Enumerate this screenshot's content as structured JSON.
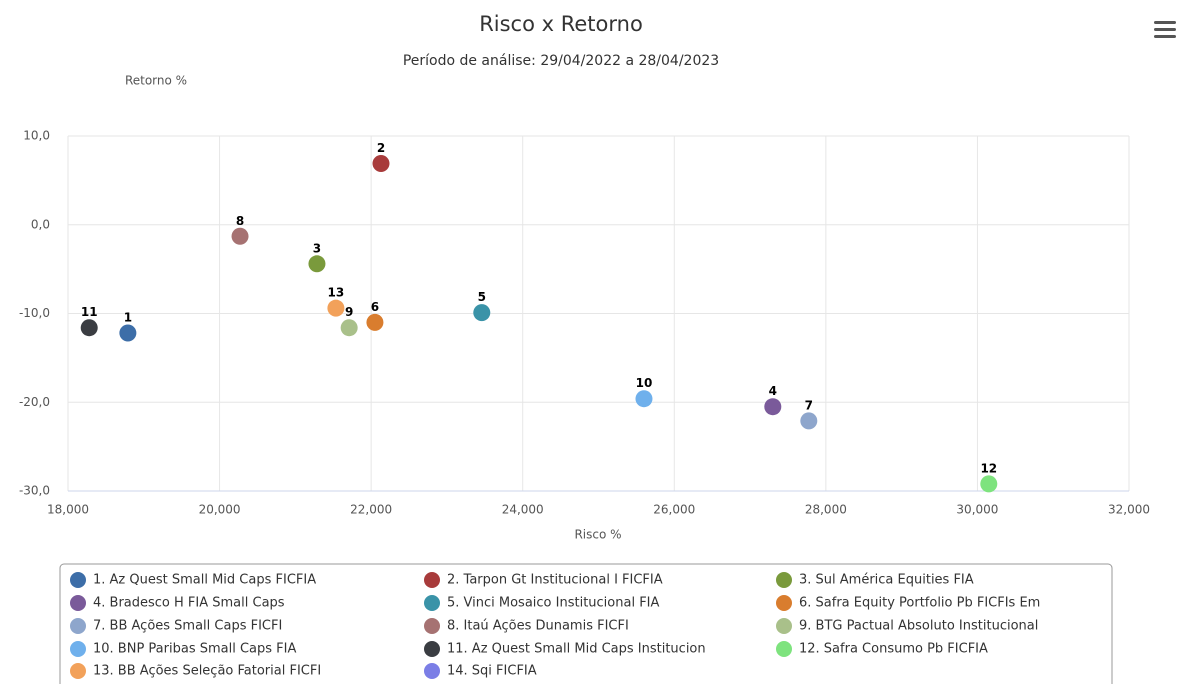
{
  "chart_data": {
    "type": "scatter",
    "title": "Risco x Retorno",
    "subtitle": "Período de análise: 29/04/2022 a 28/04/2023",
    "y_label": "Retorno %",
    "x_label": "Risco %",
    "xlim": [
      18000,
      32000
    ],
    "xticks": [
      {
        "value": 18000,
        "label": "18,000"
      },
      {
        "value": 20000,
        "label": "20,000"
      },
      {
        "value": 22000,
        "label": "22,000"
      },
      {
        "value": 24000,
        "label": "24,000"
      },
      {
        "value": 26000,
        "label": "26,000"
      },
      {
        "value": 28000,
        "label": "28,000"
      },
      {
        "value": 30000,
        "label": "30,000"
      },
      {
        "value": 32000,
        "label": "32,000"
      }
    ],
    "ylim": [
      -30,
      10
    ],
    "yticks": [
      {
        "value": 10,
        "label": "10,0"
      },
      {
        "value": 0,
        "label": "0,0"
      },
      {
        "value": -10,
        "label": "-10,0"
      },
      {
        "value": -20,
        "label": "-20,0"
      },
      {
        "value": -30,
        "label": "-30,0"
      }
    ],
    "grid": true,
    "series": [
      {
        "name": "1. Az Quest Small Mid Caps FICFIA",
        "color": "#3d6ea8",
        "x": [
          18790
        ],
        "values": [
          -12.2
        ],
        "label": "1"
      },
      {
        "name": "2. Tarpon Gt Institucional I FICFIA",
        "color": "#a83b3b",
        "x": [
          22130
        ],
        "values": [
          6.9
        ],
        "label": "2"
      },
      {
        "name": "3. Sul América Equities FIA",
        "color": "#7a9a3c",
        "x": [
          21285
        ],
        "values": [
          -4.4
        ],
        "label": "3"
      },
      {
        "name": "4. Bradesco H FIA Small Caps",
        "color": "#7a5a9a",
        "x": [
          27300
        ],
        "values": [
          -20.5
        ],
        "label": "4"
      },
      {
        "name": "5. Vinci Mosaico Institucional FIA",
        "color": "#3a93a8",
        "x": [
          23460
        ],
        "values": [
          -9.9
        ],
        "label": "5"
      },
      {
        "name": "6. Safra Equity Portfolio Pb FICFIs Em",
        "color": "#d97d2e",
        "x": [
          22050
        ],
        "values": [
          -11.0
        ],
        "label": "6"
      },
      {
        "name": "7. BB Ações Small Caps FICFI",
        "color": "#8ea6cc",
        "x": [
          27775
        ],
        "values": [
          -22.1
        ],
        "label": "7"
      },
      {
        "name": "8. Itaú Ações Dunamis FICFI",
        "color": "#a67272",
        "x": [
          20270
        ],
        "values": [
          -1.3
        ],
        "label": "8"
      },
      {
        "name": "9. BTG Pactual Absoluto Institucional",
        "color": "#a9c08a",
        "x": [
          21710
        ],
        "values": [
          -11.6
        ],
        "label": "9"
      },
      {
        "name": "10. BNP Paribas Small Caps FIA",
        "color": "#6fb0ec",
        "x": [
          25600
        ],
        "values": [
          -19.6
        ],
        "label": "10"
      },
      {
        "name": "11. Az Quest Small Mid Caps Institucion",
        "color": "#3a3d42",
        "x": [
          18280
        ],
        "values": [
          -11.6
        ],
        "label": "11"
      },
      {
        "name": "12. Safra Consumo Pb FICFIA",
        "color": "#7ee37e",
        "x": [
          30150
        ],
        "values": [
          -29.2
        ],
        "label": "12"
      },
      {
        "name": "13. BB Ações Seleção Fatorial FICFI",
        "color": "#f2a15a",
        "x": [
          21535
        ],
        "values": [
          -9.4
        ],
        "label": "13"
      },
      {
        "name": "14. Sqi FICFIA",
        "color": "#7b7ee6",
        "x": [
          null
        ],
        "values": [
          null
        ]
      }
    ]
  }
}
